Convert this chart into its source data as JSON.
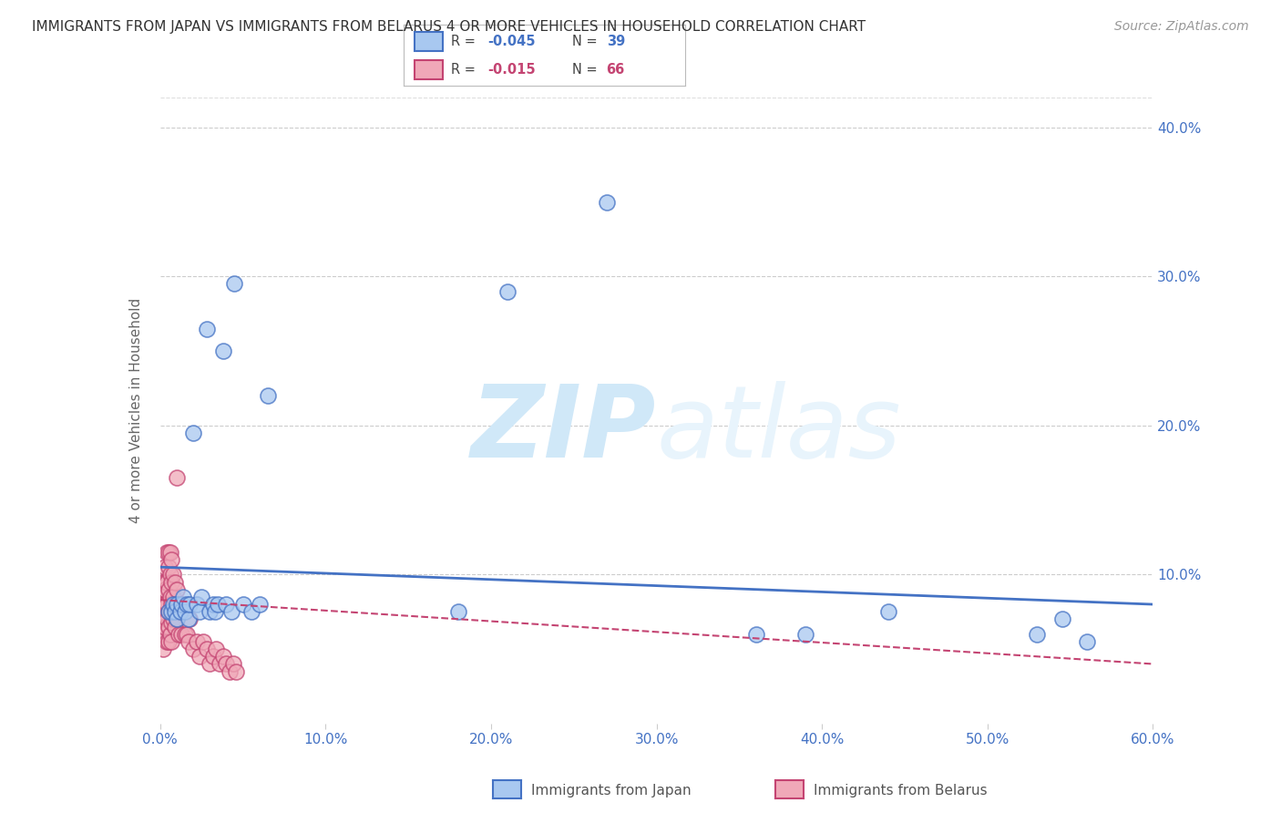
{
  "title": "IMMIGRANTS FROM JAPAN VS IMMIGRANTS FROM BELARUS 4 OR MORE VEHICLES IN HOUSEHOLD CORRELATION CHART",
  "source": "Source: ZipAtlas.com",
  "xlabel_japan": "Immigrants from Japan",
  "xlabel_belarus": "Immigrants from Belarus",
  "ylabel": "4 or more Vehicles in Household",
  "xlim": [
    0.0,
    0.6
  ],
  "ylim": [
    0.0,
    0.42
  ],
  "xticks": [
    0.0,
    0.1,
    0.2,
    0.3,
    0.4,
    0.5,
    0.6
  ],
  "yticks_left": [
    0.0,
    0.1,
    0.2,
    0.3,
    0.4
  ],
  "yticks_right": [
    0.1,
    0.2,
    0.3,
    0.4
  ],
  "right_ytick_labels": [
    "10.0%",
    "20.0%",
    "30.0%",
    "40.0%"
  ],
  "xtick_labels": [
    "0.0%",
    "10.0%",
    "20.0%",
    "30.0%",
    "40.0%",
    "50.0%",
    "60.0%"
  ],
  "color_japan": "#a8c8f0",
  "color_japan_line": "#4472c4",
  "color_belarus": "#f0a8b8",
  "color_belarus_line": "#c44472",
  "color_axis_label": "#4472c4",
  "color_right_axis": "#4472c4",
  "background_color": "#ffffff",
  "watermark_color": "#d0e8f8",
  "japan_scatter_x": [
    0.005,
    0.007,
    0.008,
    0.009,
    0.01,
    0.01,
    0.012,
    0.013,
    0.014,
    0.015,
    0.016,
    0.017,
    0.018,
    0.02,
    0.022,
    0.024,
    0.025,
    0.028,
    0.03,
    0.032,
    0.033,
    0.035,
    0.038,
    0.04,
    0.043,
    0.045,
    0.05,
    0.055,
    0.06,
    0.065,
    0.18,
    0.21,
    0.27,
    0.36,
    0.39,
    0.44,
    0.53,
    0.545,
    0.56
  ],
  "japan_scatter_y": [
    0.075,
    0.075,
    0.08,
    0.075,
    0.08,
    0.07,
    0.075,
    0.08,
    0.085,
    0.075,
    0.08,
    0.07,
    0.08,
    0.195,
    0.08,
    0.075,
    0.085,
    0.265,
    0.075,
    0.08,
    0.075,
    0.08,
    0.25,
    0.08,
    0.075,
    0.295,
    0.08,
    0.075,
    0.08,
    0.22,
    0.075,
    0.29,
    0.35,
    0.06,
    0.06,
    0.075,
    0.06,
    0.07,
    0.055
  ],
  "belarus_scatter_x": [
    0.001,
    0.001,
    0.001,
    0.002,
    0.002,
    0.002,
    0.002,
    0.002,
    0.003,
    0.003,
    0.003,
    0.003,
    0.003,
    0.004,
    0.004,
    0.004,
    0.004,
    0.004,
    0.005,
    0.005,
    0.005,
    0.005,
    0.005,
    0.005,
    0.006,
    0.006,
    0.006,
    0.006,
    0.006,
    0.007,
    0.007,
    0.007,
    0.007,
    0.007,
    0.008,
    0.008,
    0.008,
    0.009,
    0.009,
    0.009,
    0.01,
    0.01,
    0.01,
    0.011,
    0.011,
    0.012,
    0.013,
    0.014,
    0.015,
    0.016,
    0.017,
    0.018,
    0.02,
    0.022,
    0.024,
    0.026,
    0.028,
    0.03,
    0.032,
    0.034,
    0.036,
    0.038,
    0.04,
    0.042,
    0.044,
    0.046
  ],
  "belarus_scatter_y": [
    0.095,
    0.075,
    0.065,
    0.085,
    0.08,
    0.07,
    0.06,
    0.05,
    0.105,
    0.095,
    0.09,
    0.08,
    0.065,
    0.115,
    0.095,
    0.08,
    0.07,
    0.055,
    0.115,
    0.105,
    0.09,
    0.075,
    0.065,
    0.055,
    0.115,
    0.1,
    0.085,
    0.075,
    0.06,
    0.11,
    0.095,
    0.08,
    0.068,
    0.055,
    0.1,
    0.085,
    0.07,
    0.095,
    0.08,
    0.065,
    0.165,
    0.09,
    0.07,
    0.08,
    0.06,
    0.075,
    0.06,
    0.08,
    0.06,
    0.06,
    0.055,
    0.07,
    0.05,
    0.055,
    0.045,
    0.055,
    0.05,
    0.04,
    0.045,
    0.05,
    0.04,
    0.045,
    0.04,
    0.035,
    0.04,
    0.035
  ],
  "japan_trendline_x": [
    0.0,
    0.6
  ],
  "japan_trendline_y": [
    0.105,
    0.08
  ],
  "belarus_trendline_x": [
    0.0,
    0.6
  ],
  "belarus_trendline_y": [
    0.083,
    0.04
  ]
}
